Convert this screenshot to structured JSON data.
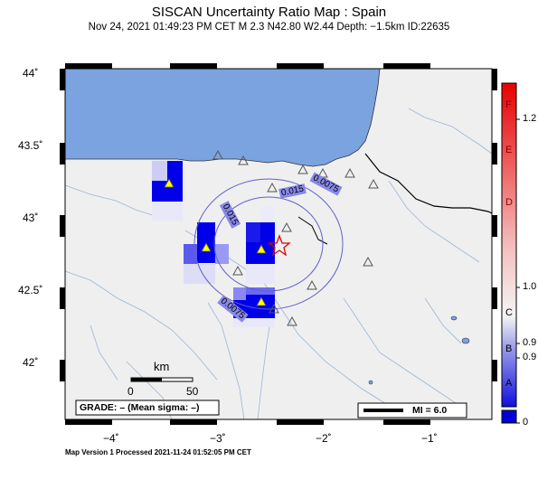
{
  "header": {
    "title": "SISCAN Uncertainty Ratio Map : Spain",
    "subtitle": "Nov 24, 2021 01:49:23 PM CET   M 2.3   N42.80 W2.44   Depth: −1.5km   ID:22635"
  },
  "axes": {
    "lat_labels": [
      "44˚",
      "43.5˚",
      "43˚",
      "42.5˚",
      "42˚"
    ],
    "lon_labels": [
      "−4˚",
      "−3˚",
      "−2˚",
      "−1˚"
    ]
  },
  "contours": {
    "labels": [
      "0.0075",
      "0.015",
      "0.015",
      "0.0075"
    ]
  },
  "scale_bar": {
    "unit": "km",
    "tick_start": "0",
    "tick_end": "50"
  },
  "grade_box": "GRADE: – (Mean sigma: –)",
  "mi_box": "MI = 6.0",
  "colorbar": {
    "letters": [
      "F",
      "E",
      "D",
      "C",
      "B",
      "A"
    ],
    "values": [
      "1.2",
      "1.0",
      "0.9",
      "0.9",
      "0"
    ]
  },
  "footer": "Map Version 1 Processed 2021‑11‑24 01:52:05 PM CET",
  "colors": {
    "sea": "#7aa3e0",
    "land": "#efefef",
    "epicenter": "#e00000",
    "cell_dark": "#0000e8",
    "station": "#ffff00"
  }
}
